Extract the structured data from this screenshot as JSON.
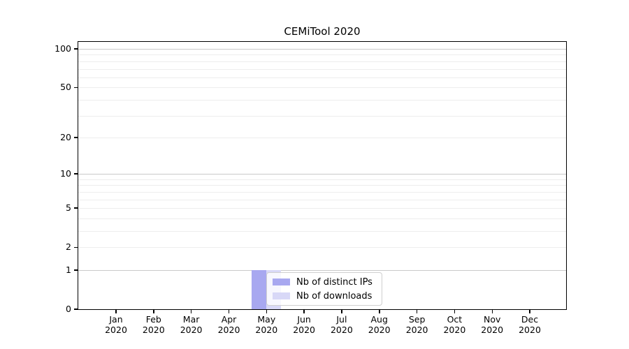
{
  "chart_data": {
    "type": "bar",
    "title": "CEMiTool 2020",
    "categories": [
      "Jan 2020",
      "Feb 2020",
      "Mar 2020",
      "Apr 2020",
      "May 2020",
      "Jun 2020",
      "Jul 2020",
      "Aug 2020",
      "Sep 2020",
      "Oct 2020",
      "Nov 2020",
      "Dec 2020"
    ],
    "series": [
      {
        "name": "Nb of distinct IPs",
        "color": "#a8a8f0",
        "values": [
          0,
          0,
          0,
          0,
          1,
          0,
          0,
          0,
          0,
          0,
          0,
          0
        ]
      },
      {
        "name": "Nb of downloads",
        "color": "#d8d8f7",
        "values": [
          0,
          0,
          0,
          0,
          1,
          0,
          0,
          0,
          0,
          0,
          0,
          0
        ]
      }
    ],
    "xlabel": "",
    "ylabel": "",
    "y_scale": "log1p",
    "ylim": [
      0,
      113
    ],
    "y_ticks": [
      0,
      1,
      2,
      5,
      10,
      20,
      50,
      100
    ],
    "y_major_gridlines": [
      1,
      10,
      100
    ],
    "y_minor_gridlines": [
      2,
      3,
      4,
      5,
      6,
      7,
      8,
      9,
      20,
      30,
      40,
      50,
      60,
      70,
      80,
      90
    ],
    "grid": "horizontal",
    "legend_position": "inside-bottom-left-of-center"
  },
  "colors": {
    "axis": "#000000",
    "major_grid": "#c9c9c9",
    "minor_grid": "#ededed",
    "legend_border": "#cfcfcf",
    "background": "#ffffff"
  }
}
